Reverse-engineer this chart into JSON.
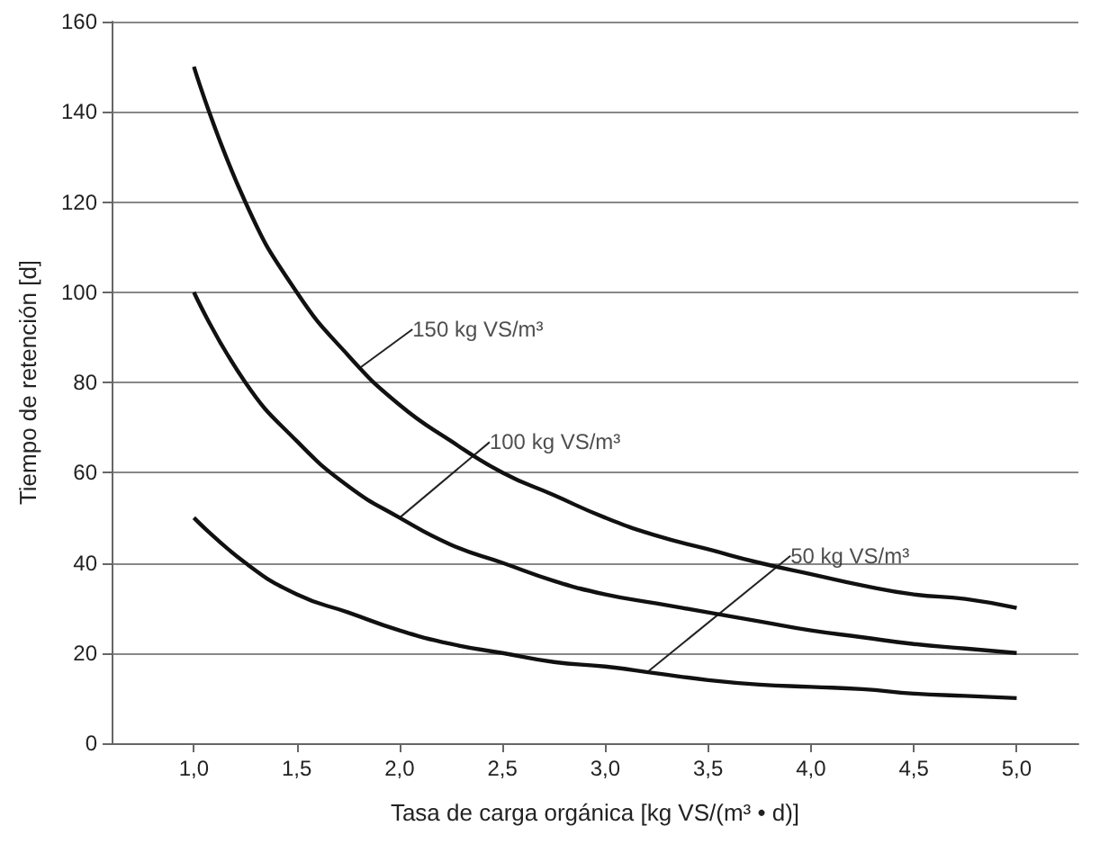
{
  "chart_data": {
    "type": "line",
    "xlabel": "Tasa de carga orgánica [kg VS/(m³ • d)]",
    "ylabel": "Tiempo de retención [d]",
    "x": [
      1,
      1.25,
      1.5,
      1.75,
      2,
      2.25,
      2.5,
      2.75,
      3,
      3.25,
      3.5,
      3.75,
      4,
      4.25,
      4.5,
      4.75,
      5
    ],
    "series": [
      {
        "color": "#111111",
        "values": [
          150,
          120,
          100,
          86,
          75,
          67,
          60,
          55,
          50,
          46,
          43,
          40,
          37.5,
          35,
          33,
          32,
          30
        ]
      },
      {
        "color": "#111111",
        "values": [
          100,
          80,
          67,
          57,
          50,
          44,
          40,
          36,
          33,
          31,
          29,
          27,
          25,
          23.5,
          22,
          21,
          20
        ]
      },
      {
        "color": "#111111",
        "values": [
          50,
          40,
          33,
          29,
          25,
          22,
          20,
          18,
          17,
          15.5,
          14,
          13,
          12.5,
          12,
          11,
          10.5,
          10
        ]
      }
    ],
    "xlim": [
      0.6,
      5.3
    ],
    "ylim": [
      0,
      160
    ],
    "xticks": [
      {
        "value": 1,
        "label": "1,0"
      },
      {
        "value": 1.5,
        "label": "1,5"
      },
      {
        "value": 2,
        "label": "2,0"
      },
      {
        "value": 2.5,
        "label": "2,5"
      },
      {
        "value": 3,
        "label": "3,0"
      },
      {
        "value": 3.5,
        "label": "3,5"
      },
      {
        "value": 4,
        "label": "4,0"
      },
      {
        "value": 4.5,
        "label": "4,5"
      },
      {
        "value": 5,
        "label": "5,0"
      }
    ],
    "yticks": [
      0,
      20,
      40,
      60,
      80,
      100,
      120,
      140,
      160
    ],
    "grid": "y",
    "marker": "none",
    "line_style": "solid",
    "annotations": [
      {
        "text": "150 kg VS/m³",
        "x": 1.8,
        "y": 83
      },
      {
        "text": "100 kg VS/m³",
        "x": 2,
        "y": 50
      },
      {
        "text": "50 kg VS/m³",
        "x": 3.2,
        "y": 15.6
      }
    ]
  }
}
